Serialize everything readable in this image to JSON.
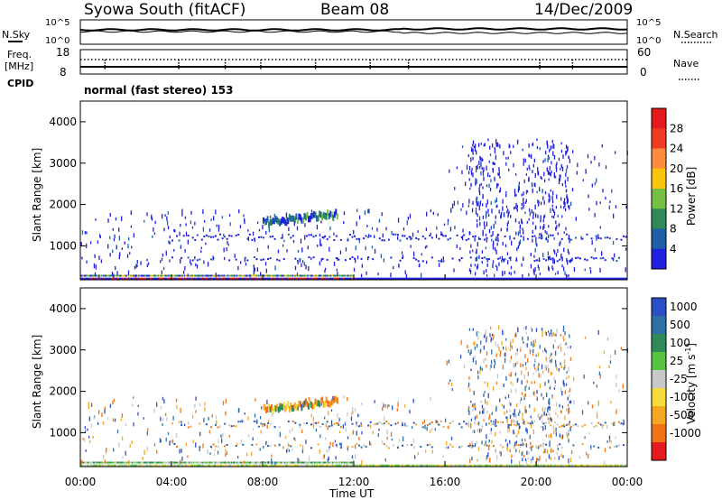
{
  "header": {
    "title": "Syowa South (fitACF)",
    "beam": "Beam 08",
    "date": "14/Dec/2009"
  },
  "top_panel": {
    "left_label": "N.Sky",
    "right_label": "N.Search",
    "left_ticks": [
      "10^5",
      "10^0"
    ],
    "right_ticks": [
      "10^5",
      "10^0"
    ]
  },
  "freq_panel": {
    "left_label_1": "Freq.",
    "left_label_2": "[MHz]",
    "cpid_label": "CPID",
    "left_ticks": [
      "18",
      "8"
    ],
    "right_ticks": [
      "60",
      "0"
    ],
    "right_label": "Nave"
  },
  "cpid_text": "normal (fast stereo) 153",
  "x_axis": {
    "label": "Time UT",
    "ticks": [
      "00:00",
      "04:00",
      "08:00",
      "12:00",
      "16:00",
      "20:00",
      "00:00"
    ]
  },
  "y_axis": {
    "label": "Slant Range [km]",
    "ticks": [
      "4000",
      "3000",
      "2000",
      "1000"
    ]
  },
  "power_scale": {
    "label": "Power [dB]",
    "ticks": [
      "28",
      "24",
      "20",
      "16",
      "12",
      "8",
      "4"
    ],
    "colors": [
      "#e41a1c",
      "#f03b20",
      "#fd8d3c",
      "#f9c40b",
      "#76c043",
      "#2e8b57",
      "#1d5fa8",
      "#1f1fdf"
    ]
  },
  "velocity_scale": {
    "label": "Velocity [m s",
    "sup": "-1",
    "label_end": "]",
    "ticks": [
      "1000",
      "500",
      "100",
      "25",
      "-25",
      "-100",
      "-500",
      "-1000"
    ],
    "colors": [
      "#2b4fc6",
      "#2e6fa8",
      "#2e8b57",
      "#57c440",
      "#c8c8c8",
      "#f5dc3a",
      "#f5a623",
      "#f07417",
      "#e41a1c"
    ]
  },
  "chart_data": {
    "type": "heatmap",
    "x_unit": "hours UT",
    "xlim": [
      0,
      24
    ],
    "ylim": [
      180,
      4500
    ],
    "panels": [
      {
        "name": "Power [dB]",
        "range_bands_km": [
          {
            "t_start": 0,
            "t_end": 12,
            "range_km": 300,
            "level": "mixed low"
          },
          {
            "t_start": 0,
            "t_end": 24,
            "range_km": 200,
            "level": "ground scatter"
          },
          {
            "t_start": 8,
            "t_end": 11,
            "range_km": 1500,
            "level": "12-20 dB patch"
          },
          {
            "t_start": 17,
            "t_end": 21,
            "range_km": 2500,
            "level": "4-8 dB scattered"
          }
        ]
      },
      {
        "name": "Velocity [m s^-1]",
        "range_bands_km": [
          {
            "t_start": 8,
            "t_end": 11,
            "range_km": 1500,
            "level": "-100 to -500"
          },
          {
            "t_start": 0,
            "t_end": 24,
            "range_km": 200,
            "level": "near zero"
          }
        ]
      }
    ]
  }
}
